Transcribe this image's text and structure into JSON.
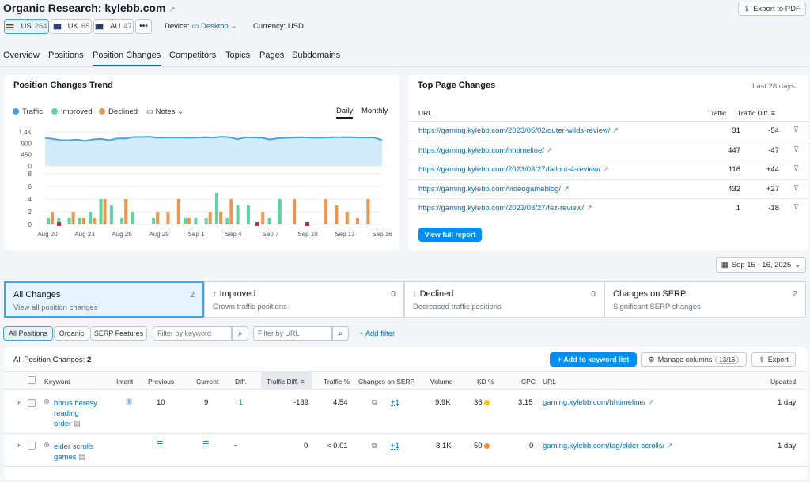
{
  "header": {
    "title": "Organic Research:",
    "domain": "kylebb.com",
    "export_pdf": "Export to PDF"
  },
  "databases": [
    {
      "label": "US",
      "count": "264"
    },
    {
      "label": "UK",
      "count": "65"
    },
    {
      "label": "AU",
      "count": "47"
    }
  ],
  "device": {
    "label": "Device:",
    "value": "Desktop"
  },
  "currency": "Currency: USD",
  "tabs": [
    "Overview",
    "Positions",
    "Position Changes",
    "Competitors",
    "Topics",
    "Pages",
    "Subdomains"
  ],
  "trend": {
    "title": "Position Changes Trend",
    "legend": [
      "Traffic",
      "Improved",
      "Declined",
      "Notes"
    ],
    "daily": "Daily",
    "monthly": "Monthly"
  },
  "colors": {
    "traffic": "#3fa4e8",
    "improved": "#5cd6a1",
    "declined": "#f2954b",
    "accent": "#006dca"
  },
  "chart_data": [
    {
      "type": "area",
      "title": "",
      "ylim": [
        0,
        1400
      ],
      "yticks": [
        "1.4K",
        "900",
        "450",
        "0"
      ],
      "values": [
        1150,
        1110,
        1060,
        1060,
        1080,
        1030,
        1090,
        1110,
        1060,
        1130,
        1130,
        1190,
        1190,
        1200,
        1160,
        1170,
        1170,
        1170,
        1160,
        1170,
        1180,
        1170,
        1200,
        1180,
        1100,
        1180,
        1170,
        1160,
        1090,
        1140,
        1160,
        1170,
        1180,
        1170,
        1160,
        1170,
        1180,
        1180,
        1180,
        1170,
        1170,
        1170,
        1060
      ]
    },
    {
      "type": "bar",
      "title": "",
      "ylim": [
        0,
        8
      ],
      "yticks": [
        "8",
        "6",
        "4",
        "2",
        "0"
      ],
      "xticks": [
        "Aug 20",
        "Aug 23",
        "Aug 26",
        "Aug 29",
        "Sep 1",
        "Sep 4",
        "Sep 7",
        "Sep 10",
        "Sep 13",
        "Sep 16"
      ],
      "series": [
        {
          "name": "Improved",
          "values": [
            1,
            1,
            1,
            1,
            2,
            4,
            3,
            1,
            2,
            0,
            1,
            0,
            0,
            1,
            1,
            1,
            5,
            1,
            3,
            3,
            0,
            1,
            4,
            0,
            0,
            0,
            0,
            0,
            0,
            0,
            0,
            0
          ]
        },
        {
          "name": "Declined",
          "values": [
            2,
            0,
            2,
            1,
            1,
            4,
            0,
            4,
            0,
            0,
            2,
            2,
            4,
            1,
            0,
            2,
            2,
            4,
            0,
            0,
            2,
            0,
            0,
            4,
            0,
            0,
            4,
            3,
            2,
            1,
            4,
            0
          ]
        }
      ]
    }
  ],
  "top": {
    "title": "Top Page Changes",
    "period": "Last 28 days",
    "col_url": "URL",
    "col_traffic": "Traffic",
    "col_diff": "Traffic Diff.",
    "button": "View full report",
    "rows": [
      {
        "url": "https://gaming.kylebb.com/2023/05/02/outer-wilds-review/",
        "traffic": "31",
        "diff": "-54"
      },
      {
        "url": "https://gaming.kylebb.com/hhtimeline/",
        "traffic": "447",
        "diff": "-47"
      },
      {
        "url": "https://gaming.kylebb.com/2023/03/27/fallout-4-review/",
        "traffic": "116",
        "diff": "+44"
      },
      {
        "url": "https://gaming.kylebb.com/videogameblog/",
        "traffic": "432",
        "diff": "+27"
      },
      {
        "url": "https://gaming.kylebb.com/2023/03/27/fez-review/",
        "traffic": "1",
        "diff": "-18"
      }
    ]
  },
  "date_range": "Sep 15 - 16, 2025",
  "summary": [
    {
      "title": "All Changes",
      "sub": "View all position changes",
      "count": "2"
    },
    {
      "title": "Improved",
      "sub": "Grown traffic positions",
      "count": "0"
    },
    {
      "title": "Declined",
      "sub": "Decreased traffic positions",
      "count": "0"
    },
    {
      "title": "Changes on SERP",
      "sub": "Significant SERP changes",
      "count": "2"
    }
  ],
  "filters": {
    "tabs": [
      "All Positions",
      "Organic",
      "SERP Features"
    ],
    "kw_placeholder": "Filter by keyword",
    "url_placeholder": "Filter by URL",
    "add_filter": "Add filter"
  },
  "table": {
    "title": "All Position Changes:",
    "count": "2",
    "add_keyword": "Add to keyword list",
    "manage": "Manage columns",
    "manage_count": "13/16",
    "export": "Export",
    "headers": [
      "Keyword",
      "Intent",
      "Previous",
      "Current",
      "Diff.",
      "Traffic Diff.",
      "Traffic %",
      "Changes on SERP",
      "Volume",
      "KD %",
      "CPC",
      "URL",
      "Updated"
    ],
    "rows": [
      {
        "kw1": "horus heresy",
        "kw2": "reading",
        "kw3": "order",
        "intent": "I",
        "previous": "10",
        "current": "9",
        "diff": "1",
        "traffic_diff": "-139",
        "traffic_pct": "4.54",
        "serp": "+1",
        "volume": "9.9K",
        "kd": "36",
        "kd_color": "#f5c419",
        "cpc": "3.15",
        "url": "gaming.kylebb.com/hhtimeline/",
        "updated": "1 day"
      },
      {
        "kw1": "elder scrolls",
        "kw2": "games",
        "kw3": "",
        "intent": "",
        "previous": "",
        "current": "",
        "diff": "-",
        "traffic_diff": "0",
        "traffic_pct": "< 0.01",
        "serp": "+1",
        "volume": "8.1K",
        "kd": "50",
        "kd_color": "#f08a3c",
        "cpc": "0",
        "url": "gaming.kylebb.com/tag/elder-scrolls/",
        "updated": "1 day"
      }
    ]
  }
}
